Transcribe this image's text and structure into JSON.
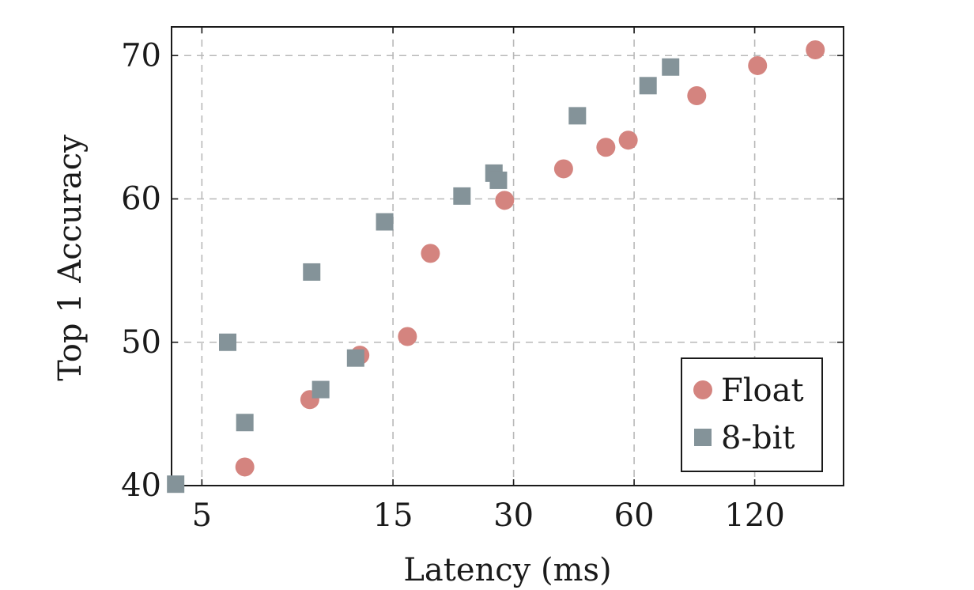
{
  "chart_data": {
    "type": "scatter",
    "xlabel": "Latency (ms)",
    "ylabel": "Top 1 Accuracy",
    "xscale": "log2",
    "xlim": [
      4.2,
      200
    ],
    "ylim": [
      40,
      72
    ],
    "xticks": [
      5,
      15,
      30,
      60,
      120
    ],
    "xtick_labels": [
      "5",
      "15",
      "30",
      "60",
      "120"
    ],
    "yticks": [
      40,
      50,
      60,
      70
    ],
    "ytick_labels": [
      "40",
      "50",
      "60",
      "70"
    ],
    "grid": true,
    "legend_position": "bottom-right",
    "series": [
      {
        "name": "Float",
        "marker": "circle",
        "color": "#d4847f",
        "points": [
          [
            6.4,
            41.3
          ],
          [
            9.3,
            46.0
          ],
          [
            12.4,
            49.1
          ],
          [
            16.3,
            50.4
          ],
          [
            18.6,
            56.2
          ],
          [
            28.5,
            59.9
          ],
          [
            40.0,
            62.1
          ],
          [
            51.0,
            63.6
          ],
          [
            58.0,
            64.1
          ],
          [
            86.0,
            67.2
          ],
          [
            122.0,
            69.3
          ],
          [
            170.0,
            70.4
          ]
        ]
      },
      {
        "name": "8-bit",
        "marker": "square",
        "color": "#849399",
        "points": [
          [
            4.3,
            40.1
          ],
          [
            5.8,
            50.0
          ],
          [
            6.4,
            44.4
          ],
          [
            9.4,
            54.9
          ],
          [
            9.9,
            46.7
          ],
          [
            12.1,
            48.9
          ],
          [
            14.3,
            58.4
          ],
          [
            22.3,
            60.2
          ],
          [
            26.8,
            61.8
          ],
          [
            27.5,
            61.3
          ],
          [
            43.3,
            65.8
          ],
          [
            65.0,
            67.9
          ],
          [
            74.0,
            69.2
          ]
        ]
      }
    ]
  }
}
